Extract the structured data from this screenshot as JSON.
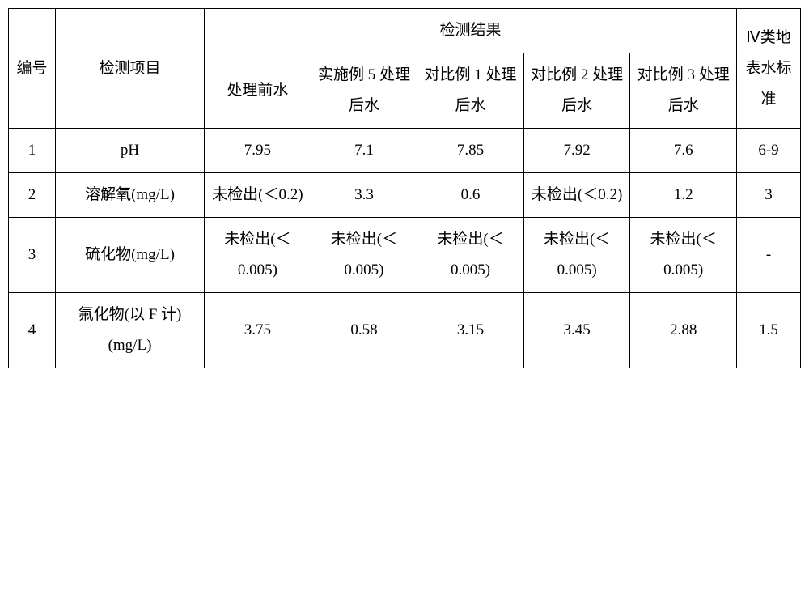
{
  "table": {
    "border_color": "#000000",
    "background_color": "#ffffff",
    "text_color": "#000000",
    "font_size_pt": 14,
    "header": {
      "num": "编号",
      "item": "检测项目",
      "results_group": "检测结果",
      "before": "处理前水",
      "ex5": "实施例 5 处理后水",
      "cmp1": "对比例 1 处理后水",
      "cmp2": "对比例 2 处理后水",
      "cmp3": "对比例 3 处理后水",
      "std": "Ⅳ类地表水标准"
    },
    "rows": [
      {
        "num": "1",
        "item": "pH",
        "before": "7.95",
        "ex5": "7.1",
        "cmp1": "7.85",
        "cmp2": "7.92",
        "cmp3": "7.6",
        "std": "6-9"
      },
      {
        "num": "2",
        "item": "溶解氧(mg/L)",
        "before": "未检出(＜0.2)",
        "ex5": "3.3",
        "cmp1": "0.6",
        "cmp2": "未检出(＜0.2)",
        "cmp3": "1.2",
        "std": "3"
      },
      {
        "num": "3",
        "item": "硫化物(mg/L)",
        "before": "未检出(＜0.005)",
        "ex5": "未检出(＜0.005)",
        "cmp1": "未检出(＜0.005)",
        "cmp2": "未检出(＜0.005)",
        "cmp3": "未检出(＜0.005)",
        "std": "-"
      },
      {
        "num": "4",
        "item": "氟化物(以 F 计)(mg/L)",
        "before": "3.75",
        "ex5": "0.58",
        "cmp1": "3.15",
        "cmp2": "3.45",
        "cmp3": "2.88",
        "std": "1.5"
      }
    ]
  }
}
